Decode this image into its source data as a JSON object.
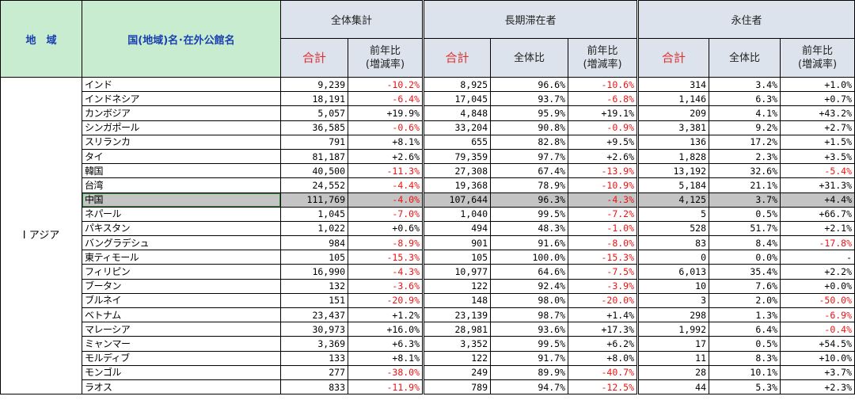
{
  "header": {
    "region": "地　域",
    "country": "国(地域)名･在外公館名",
    "total_group": "全体集計",
    "long_group": "長期滞在者",
    "perm_group": "永住者",
    "sum": "合計",
    "yoy_line1": "前年比",
    "yoy_line2": "(増減率)",
    "share": "全体比"
  },
  "region_label": "Ⅰ アジア",
  "rows": [
    {
      "name": "インド",
      "total": "9,239",
      "total_yoy": "-10.2%",
      "long": "8,925",
      "long_share": "96.6%",
      "long_yoy": "-10.6%",
      "perm": "314",
      "perm_share": "3.4%",
      "perm_yoy": "+1.0%"
    },
    {
      "name": "インドネシア",
      "total": "18,191",
      "total_yoy": "-6.4%",
      "long": "17,045",
      "long_share": "93.7%",
      "long_yoy": "-6.8%",
      "perm": "1,146",
      "perm_share": "6.3%",
      "perm_yoy": "+0.7%"
    },
    {
      "name": "カンボジア",
      "total": "5,057",
      "total_yoy": "+19.9%",
      "long": "4,848",
      "long_share": "95.9%",
      "long_yoy": "+19.1%",
      "perm": "209",
      "perm_share": "4.1%",
      "perm_yoy": "+43.2%"
    },
    {
      "name": "シンガポール",
      "total": "36,585",
      "total_yoy": "-0.6%",
      "long": "33,204",
      "long_share": "90.8%",
      "long_yoy": "-0.9%",
      "perm": "3,381",
      "perm_share": "9.2%",
      "perm_yoy": "+2.7%"
    },
    {
      "name": "スリランカ",
      "total": "791",
      "total_yoy": "+8.1%",
      "long": "655",
      "long_share": "82.8%",
      "long_yoy": "+9.5%",
      "perm": "136",
      "perm_share": "17.2%",
      "perm_yoy": "+1.5%"
    },
    {
      "name": "タイ",
      "total": "81,187",
      "total_yoy": "+2.6%",
      "long": "79,359",
      "long_share": "97.7%",
      "long_yoy": "+2.6%",
      "perm": "1,828",
      "perm_share": "2.3%",
      "perm_yoy": "+3.5%"
    },
    {
      "name": "韓国",
      "total": "40,500",
      "total_yoy": "-11.3%",
      "long": "27,308",
      "long_share": "67.4%",
      "long_yoy": "-13.9%",
      "perm": "13,192",
      "perm_share": "32.6%",
      "perm_yoy": "-5.4%"
    },
    {
      "name": "台湾",
      "total": "24,552",
      "total_yoy": "-4.4%",
      "long": "19,368",
      "long_share": "78.9%",
      "long_yoy": "-10.9%",
      "perm": "5,184",
      "perm_share": "21.1%",
      "perm_yoy": "+31.3%"
    },
    {
      "name": "中国",
      "total": "111,769",
      "total_yoy": "-4.0%",
      "long": "107,644",
      "long_share": "96.3%",
      "long_yoy": "-4.3%",
      "perm": "4,125",
      "perm_share": "3.7%",
      "perm_yoy": "+4.4%",
      "highlight": true
    },
    {
      "name": "ネパール",
      "total": "1,045",
      "total_yoy": "-7.0%",
      "long": "1,040",
      "long_share": "99.5%",
      "long_yoy": "-7.2%",
      "perm": "5",
      "perm_share": "0.5%",
      "perm_yoy": "+66.7%"
    },
    {
      "name": "パキスタン",
      "total": "1,022",
      "total_yoy": "+0.6%",
      "long": "494",
      "long_share": "48.3%",
      "long_yoy": "-1.0%",
      "perm": "528",
      "perm_share": "51.7%",
      "perm_yoy": "+2.1%"
    },
    {
      "name": "バングラデシュ",
      "total": "984",
      "total_yoy": "-8.9%",
      "long": "901",
      "long_share": "91.6%",
      "long_yoy": "-8.0%",
      "perm": "83",
      "perm_share": "8.4%",
      "perm_yoy": "-17.8%"
    },
    {
      "name": "東ティモール",
      "total": "105",
      "total_yoy": "-15.3%",
      "long": "105",
      "long_share": "100.0%",
      "long_yoy": "-15.3%",
      "perm": "0",
      "perm_share": "0.0%",
      "perm_yoy": "-"
    },
    {
      "name": "フィリピン",
      "total": "16,990",
      "total_yoy": "-4.3%",
      "long": "10,977",
      "long_share": "64.6%",
      "long_yoy": "-7.5%",
      "perm": "6,013",
      "perm_share": "35.4%",
      "perm_yoy": "+2.2%"
    },
    {
      "name": "ブータン",
      "total": "132",
      "total_yoy": "-3.6%",
      "long": "122",
      "long_share": "92.4%",
      "long_yoy": "-3.9%",
      "perm": "10",
      "perm_share": "7.6%",
      "perm_yoy": "+0.0%"
    },
    {
      "name": "ブルネイ",
      "total": "151",
      "total_yoy": "-20.9%",
      "long": "148",
      "long_share": "98.0%",
      "long_yoy": "-20.0%",
      "perm": "3",
      "perm_share": "2.0%",
      "perm_yoy": "-50.0%"
    },
    {
      "name": "ベトナム",
      "total": "23,437",
      "total_yoy": "+1.2%",
      "long": "23,139",
      "long_share": "98.7%",
      "long_yoy": "+1.4%",
      "perm": "298",
      "perm_share": "1.3%",
      "perm_yoy": "-6.9%"
    },
    {
      "name": "マレーシア",
      "total": "30,973",
      "total_yoy": "+16.0%",
      "long": "28,981",
      "long_share": "93.6%",
      "long_yoy": "+17.3%",
      "perm": "1,992",
      "perm_share": "6.4%",
      "perm_yoy": "-0.4%"
    },
    {
      "name": "ミャンマー",
      "total": "3,369",
      "total_yoy": "+6.3%",
      "long": "3,352",
      "long_share": "99.5%",
      "long_yoy": "+6.2%",
      "perm": "17",
      "perm_share": "0.5%",
      "perm_yoy": "+54.5%"
    },
    {
      "name": "モルディブ",
      "total": "133",
      "total_yoy": "+8.1%",
      "long": "122",
      "long_share": "91.7%",
      "long_yoy": "+8.0%",
      "perm": "11",
      "perm_share": "8.3%",
      "perm_yoy": "+10.0%"
    },
    {
      "name": "モンゴル",
      "total": "277",
      "total_yoy": "-38.0%",
      "long": "249",
      "long_share": "89.9%",
      "long_yoy": "-40.7%",
      "perm": "28",
      "perm_share": "10.1%",
      "perm_yoy": "+3.7%"
    },
    {
      "name": "ラオス",
      "total": "833",
      "total_yoy": "-11.9%",
      "long": "789",
      "long_share": "94.7%",
      "long_yoy": "-12.5%",
      "perm": "44",
      "perm_share": "5.3%",
      "perm_yoy": "+2.3%"
    }
  ]
}
